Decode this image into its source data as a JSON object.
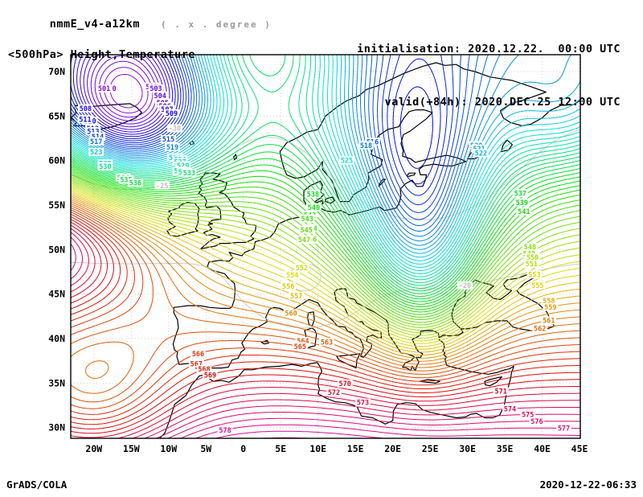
{
  "header": {
    "model_name": "nmmE_v4-a12km",
    "grid_note": "( . x . degree )",
    "field_title": "<500hPa> Height,Temperature",
    "init_line": "initialisation: 2020.12.22.  00:00 UTC",
    "valid_line": "valid(+84h): 2020.DEC.25 12:00 UTC"
  },
  "footer": {
    "credit": "GrADS/COLA",
    "timestamp": "2020-12-22-06:33"
  },
  "chart_data": {
    "type": "contour-map",
    "title": "<500hPa> Height,Temperature",
    "projection": "latlon",
    "region": {
      "lon_min": -23.1,
      "lon_max": 45.1,
      "lat_min": 28.8,
      "lat_max": 71.9
    },
    "lat_ticks": [
      {
        "value": 30,
        "label": "30N"
      },
      {
        "value": 35,
        "label": "35N"
      },
      {
        "value": 40,
        "label": "40N"
      },
      {
        "value": 45,
        "label": "45N"
      },
      {
        "value": 50,
        "label": "50N"
      },
      {
        "value": 55,
        "label": "55N"
      },
      {
        "value": 60,
        "label": "60N"
      },
      {
        "value": 65,
        "label": "65N"
      },
      {
        "value": 70,
        "label": "70N"
      }
    ],
    "lon_ticks": [
      {
        "value": -20,
        "label": "20W"
      },
      {
        "value": -15,
        "label": "15W"
      },
      {
        "value": -10,
        "label": "10W"
      },
      {
        "value": -5,
        "label": "5W"
      },
      {
        "value": 0,
        "label": "0"
      },
      {
        "value": 5,
        "label": "5E"
      },
      {
        "value": 10,
        "label": "10E"
      },
      {
        "value": 15,
        "label": "15E"
      },
      {
        "value": 20,
        "label": "20E"
      },
      {
        "value": 25,
        "label": "25E"
      },
      {
        "value": 30,
        "label": "30E"
      },
      {
        "value": 35,
        "label": "35E"
      },
      {
        "value": 40,
        "label": "40E"
      },
      {
        "value": 45,
        "label": "45E"
      }
    ],
    "grid": {
      "step_deg": 5,
      "style": "dotted",
      "color": "#c8c8c8"
    },
    "height_contours": {
      "units": "dam",
      "interval": 1,
      "level_min": 500,
      "level_max": 580,
      "labeled_values_visible": [
        521,
        522,
        523,
        524,
        526,
        527,
        534,
        537,
        538,
        539,
        540,
        541,
        556,
        558,
        560,
        561,
        562,
        563,
        566,
        568,
        570,
        571,
        572,
        574,
        575,
        576,
        577
      ],
      "colormap": {
        "type": "rainbow",
        "value_min": 499,
        "value_max": 580,
        "hue_start": 285,
        "hue_end": -45,
        "saturation": 95,
        "lightness": 45
      },
      "synthetic_field": {
        "base_value": 558,
        "base_ref_lat": 45,
        "base_slope_per_deg": -1.25,
        "features": [
          {
            "name": "atlantic-blocking-high",
            "amp": 30,
            "lon": -29,
            "slon": 13,
            "lat": 52,
            "slat": 6.5
          },
          {
            "name": "iceland-low",
            "amp": -34,
            "lon": -15.5,
            "slon": 8,
            "lat": 65.5,
            "slat": 7
          },
          {
            "name": "scandinavian-low",
            "amp": -27,
            "lon": 23,
            "slon": 8,
            "lat": 59,
            "slat": 11
          },
          {
            "name": "balkan-trough",
            "amp": -12,
            "lon": 24,
            "slon": 5,
            "lat": 48,
            "slat": 7
          },
          {
            "name": "northeast-low",
            "amp": -9,
            "lon": 43,
            "slon": 6,
            "lat": 65.5,
            "slat": 5
          },
          {
            "name": "arctic-ridge",
            "amp": 14,
            "lon": 2,
            "slon": 8,
            "lat": 74,
            "slat": 5
          },
          {
            "name": "subtropical-high",
            "amp": 2,
            "lon": 5,
            "slon": 18,
            "lat": 27,
            "slat": 7
          },
          {
            "name": "east-atlantic-trough",
            "amp": -10,
            "lon": -20,
            "slon": 8,
            "lat": 33,
            "slat": 6
          }
        ]
      }
    },
    "temperature_contours": {
      "units": "C",
      "style": "dashed",
      "color": "#cccccc",
      "label_color": "#bdbdbd",
      "levels": [
        -30,
        -25,
        -20
      ],
      "synthetic_field": {
        "base_value": -14,
        "base_ref_lat": 30,
        "base_slope_per_deg": -0.32,
        "features": [
          {
            "name": "alpine-cold-pool",
            "amp": -6,
            "lon": 8,
            "slon": 5,
            "lat": 46,
            "slat": 3.5
          },
          {
            "name": "scandinavian-cold",
            "amp": -5,
            "lon": 24,
            "slon": 9,
            "lat": 60,
            "slat": 8
          },
          {
            "name": "iceland-cold",
            "amp": -8,
            "lon": -15,
            "slon": 7,
            "lat": 66,
            "slat": 6
          }
        ]
      }
    }
  }
}
